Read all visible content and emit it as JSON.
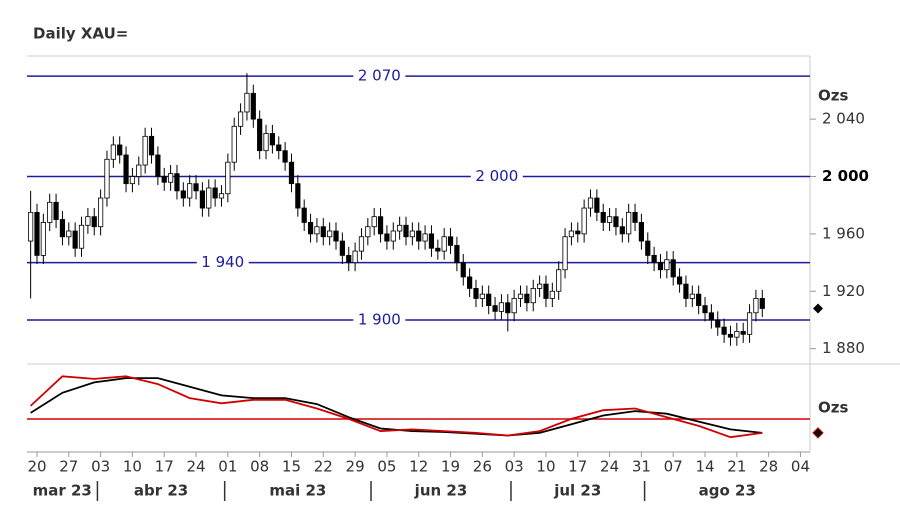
{
  "chart_data": [
    {
      "type": "candlestick",
      "title": "Daily XAU=",
      "unit_label": "Ozs",
      "ylim": [
        1870,
        2084
      ],
      "yticks": [
        {
          "value": 1880,
          "label": "1 880"
        },
        {
          "value": 1920,
          "label": "1 920"
        },
        {
          "value": 1960,
          "label": "1 960"
        },
        {
          "value": 2000,
          "label": "2 000",
          "bold": true
        },
        {
          "value": 2040,
          "label": "2 040"
        }
      ],
      "xlim": [
        -0.57,
        122.5
      ],
      "xticks": [
        {
          "value": 1,
          "label": "20"
        },
        {
          "value": 6,
          "label": "27"
        },
        {
          "value": 11,
          "label": "03"
        },
        {
          "value": 16,
          "label": "10"
        },
        {
          "value": 21,
          "label": "17"
        },
        {
          "value": 26,
          "label": "24"
        },
        {
          "value": 31,
          "label": "01"
        },
        {
          "value": 36,
          "label": "08"
        },
        {
          "value": 41,
          "label": "15"
        },
        {
          "value": 46,
          "label": "22"
        },
        {
          "value": 51,
          "label": "29"
        },
        {
          "value": 56,
          "label": "05"
        },
        {
          "value": 61,
          "label": "12"
        },
        {
          "value": 66,
          "label": "19"
        },
        {
          "value": 71,
          "label": "26"
        },
        {
          "value": 76,
          "label": "03"
        },
        {
          "value": 81,
          "label": "10"
        },
        {
          "value": 86,
          "label": "17"
        },
        {
          "value": 91,
          "label": "24"
        },
        {
          "value": 96,
          "label": "31"
        },
        {
          "value": 101,
          "label": "07"
        },
        {
          "value": 106,
          "label": "14"
        },
        {
          "value": 111,
          "label": "21"
        },
        {
          "value": 116,
          "label": "28"
        },
        {
          "value": 121,
          "label": "04"
        }
      ],
      "months": [
        "mar 23",
        "abr 23",
        "mai 23",
        "jun 23",
        "jul 23",
        "ago 23"
      ],
      "month_breaks": [
        10.5,
        30.5,
        53.5,
        75.5,
        96.5
      ],
      "levels": [
        {
          "value": 2070,
          "label": "2 070"
        },
        {
          "value": 2000,
          "label": "2 000"
        },
        {
          "value": 1940,
          "label": "1 940"
        },
        {
          "value": 1900,
          "label": "1 900"
        }
      ],
      "level_color": "#1c1c9c",
      "open": [
        1955,
        1975,
        1945,
        1968,
        1982,
        1970,
        1958,
        1962,
        1950,
        1966,
        1972,
        1965,
        1985,
        2012,
        2022,
        2015,
        1995,
        2000,
        2008,
        2028,
        2015,
        2000,
        1996,
        2002,
        1990,
        1985,
        1995,
        1990,
        1978,
        1992,
        1985,
        1988,
        2010,
        2035,
        2045,
        2058,
        2040,
        2018,
        2030,
        2022,
        2018,
        2010,
        1995,
        1978,
        1968,
        1960,
        1965,
        1958,
        1962,
        1955,
        1945,
        1940,
        1948,
        1958,
        1965,
        1972,
        1960,
        1955,
        1962,
        1966,
        1958,
        1962,
        1955,
        1960,
        1950,
        1948,
        1958,
        1952,
        1940,
        1930,
        1922,
        1915,
        1918,
        1910,
        1906,
        1912,
        1905,
        1915,
        1918,
        1912,
        1922,
        1925,
        1915,
        1920,
        1935,
        1958,
        1962,
        1960,
        1978,
        1985,
        1975,
        1968,
        1972,
        1965,
        1960,
        1975,
        1968,
        1955,
        1945,
        1940,
        1935,
        1942,
        1930,
        1925,
        1915,
        1918,
        1910,
        1905,
        1900,
        1895,
        1890,
        1888,
        1892,
        1890,
        1905,
        1915
      ],
      "high": [
        1990,
        1981,
        1974,
        1988,
        1988,
        1976,
        1968,
        1968,
        1972,
        1978,
        1978,
        1991,
        2018,
        2028,
        2028,
        2021,
        2006,
        2014,
        2034,
        2034,
        2021,
        2006,
        2008,
        2008,
        1996,
        2001,
        2001,
        1996,
        1998,
        1998,
        1994,
        2016,
        2041,
        2051,
        2072,
        2064,
        2046,
        2036,
        2036,
        2028,
        2024,
        2016,
        2001,
        1984,
        1974,
        1971,
        1971,
        1968,
        1968,
        1961,
        1951,
        1954,
        1964,
        1971,
        1978,
        1978,
        1966,
        1968,
        1972,
        1972,
        1968,
        1968,
        1966,
        1966,
        1956,
        1964,
        1964,
        1958,
        1946,
        1936,
        1928,
        1924,
        1924,
        1916,
        1918,
        1918,
        1921,
        1924,
        1924,
        1928,
        1931,
        1931,
        1926,
        1941,
        1964,
        1968,
        1968,
        1984,
        1991,
        1991,
        1981,
        1978,
        1978,
        1971,
        1981,
        1981,
        1974,
        1961,
        1951,
        1946,
        1948,
        1948,
        1936,
        1931,
        1924,
        1924,
        1916,
        1911,
        1906,
        1901,
        1896,
        1898,
        1898,
        1911,
        1921,
        1921
      ],
      "low": [
        1915,
        1939,
        1939,
        1962,
        1964,
        1952,
        1952,
        1944,
        1944,
        1960,
        1959,
        1959,
        1979,
        2006,
        2009,
        1989,
        1989,
        1994,
        2002,
        2009,
        1994,
        1990,
        1990,
        1984,
        1979,
        1979,
        1984,
        1972,
        1972,
        1979,
        1979,
        1982,
        2004,
        2029,
        2039,
        2034,
        2012,
        2012,
        2016,
        2012,
        2004,
        1989,
        1972,
        1962,
        1954,
        1954,
        1952,
        1952,
        1949,
        1939,
        1934,
        1934,
        1942,
        1952,
        1959,
        1954,
        1949,
        1949,
        1956,
        1952,
        1952,
        1949,
        1949,
        1944,
        1942,
        1942,
        1946,
        1934,
        1924,
        1916,
        1909,
        1909,
        1904,
        1900,
        1900,
        1892,
        1899,
        1909,
        1906,
        1906,
        1916,
        1909,
        1909,
        1914,
        1929,
        1952,
        1954,
        1954,
        1972,
        1969,
        1962,
        1962,
        1959,
        1954,
        1954,
        1962,
        1949,
        1939,
        1934,
        1929,
        1929,
        1924,
        1919,
        1909,
        1909,
        1904,
        1899,
        1894,
        1889,
        1884,
        1882,
        1882,
        1884,
        1884,
        1899,
        1902
      ],
      "close": [
        1975,
        1945,
        1968,
        1982,
        1970,
        1958,
        1962,
        1950,
        1966,
        1972,
        1965,
        1985,
        2012,
        2022,
        2015,
        1995,
        2000,
        2008,
        2028,
        2015,
        2000,
        1996,
        2002,
        1990,
        1985,
        1995,
        1990,
        1978,
        1992,
        1985,
        1988,
        2010,
        2035,
        2045,
        2058,
        2040,
        2018,
        2030,
        2022,
        2018,
        2010,
        1995,
        1978,
        1968,
        1960,
        1965,
        1958,
        1962,
        1955,
        1945,
        1940,
        1948,
        1958,
        1965,
        1972,
        1960,
        1955,
        1962,
        1966,
        1958,
        1962,
        1955,
        1960,
        1950,
        1948,
        1958,
        1952,
        1940,
        1930,
        1922,
        1915,
        1918,
        1910,
        1906,
        1912,
        1905,
        1915,
        1918,
        1912,
        1922,
        1925,
        1915,
        1920,
        1935,
        1958,
        1962,
        1960,
        1978,
        1985,
        1975,
        1968,
        1972,
        1965,
        1960,
        1975,
        1968,
        1955,
        1945,
        1940,
        1935,
        1942,
        1930,
        1925,
        1915,
        1918,
        1910,
        1905,
        1900,
        1895,
        1890,
        1888,
        1892,
        1890,
        1905,
        1915,
        1908
      ],
      "up_color": "#ffffff",
      "down_color": "#000000"
    },
    {
      "type": "line",
      "unit_label": "Ozs",
      "ylim": [
        0,
        100
      ],
      "level": 38,
      "level_color": "#d00000",
      "x": [
        0,
        5,
        10,
        15,
        20,
        25,
        30,
        35,
        40,
        45,
        50,
        55,
        60,
        65,
        70,
        75,
        80,
        85,
        90,
        95,
        100,
        105,
        110,
        115
      ],
      "series": [
        {
          "color": "#000000",
          "values": [
            45,
            68,
            80,
            85,
            85,
            75,
            65,
            62,
            62,
            55,
            40,
            27,
            24,
            23,
            21,
            19,
            22,
            32,
            42,
            47,
            44,
            35,
            26,
            22
          ]
        },
        {
          "color": "#d00000",
          "values": [
            53,
            87,
            84,
            87,
            78,
            62,
            56,
            60,
            60,
            50,
            38,
            24,
            26,
            24,
            22,
            19,
            24,
            38,
            48,
            50,
            40,
            30,
            17,
            22
          ]
        }
      ]
    }
  ]
}
